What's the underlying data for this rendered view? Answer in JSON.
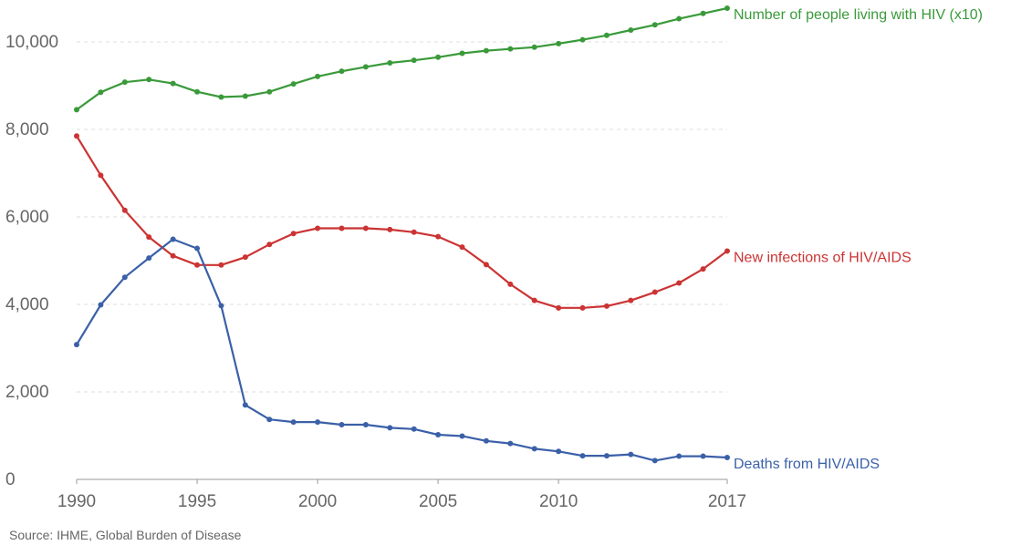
{
  "source": "Source: IHME, Global Burden of Disease",
  "chart_data": {
    "type": "line",
    "title": "",
    "xlabel": "",
    "ylabel": "",
    "x": [
      1990,
      1991,
      1992,
      1993,
      1994,
      1995,
      1996,
      1997,
      1998,
      1999,
      2000,
      2001,
      2002,
      2003,
      2004,
      2005,
      2006,
      2007,
      2008,
      2009,
      2010,
      2011,
      2012,
      2013,
      2014,
      2015,
      2016,
      2017
    ],
    "xlim": [
      1990,
      2017
    ],
    "ylim": [
      0,
      10000
    ],
    "x_ticks": [
      1990,
      1995,
      2000,
      2005,
      2010,
      2017
    ],
    "y_ticks": [
      0,
      2000,
      4000,
      6000,
      8000,
      10000
    ],
    "x_tick_labels": [
      "1990",
      "1995",
      "2000",
      "2005",
      "2010",
      "2017"
    ],
    "y_tick_labels": [
      "0",
      "2,000",
      "4,000",
      "6,000",
      "8,000",
      "10,000"
    ],
    "grid": "horizontal-dashed",
    "legend": "end-of-line labels",
    "series": [
      {
        "name": "Number of people living with HIV (x10)",
        "color": "#3a9a3a",
        "values": [
          8450,
          8850,
          9080,
          9140,
          9050,
          8860,
          8740,
          8760,
          8860,
          9040,
          9210,
          9330,
          9430,
          9520,
          9580,
          9650,
          9740,
          9800,
          9840,
          9880,
          9960,
          10050,
          10150,
          10270,
          10390,
          10530,
          10650,
          10770
        ]
      },
      {
        "name": "New infections of HIV/AIDS",
        "color": "#cc3333",
        "values": [
          7850,
          6950,
          6150,
          5540,
          5110,
          4900,
          4900,
          5080,
          5370,
          5620,
          5740,
          5740,
          5740,
          5710,
          5650,
          5550,
          5310,
          4910,
          4460,
          4090,
          3920,
          3920,
          3960,
          4090,
          4280,
          4490,
          4810,
          5220
        ]
      },
      {
        "name": "Deaths from HIV/AIDS",
        "color": "#3b60a8",
        "values": [
          3080,
          3990,
          4620,
          5060,
          5490,
          5280,
          3970,
          1700,
          1370,
          1310,
          1310,
          1250,
          1250,
          1180,
          1150,
          1020,
          990,
          880,
          820,
          700,
          640,
          540,
          540,
          570,
          430,
          530,
          530,
          500
        ]
      }
    ]
  }
}
